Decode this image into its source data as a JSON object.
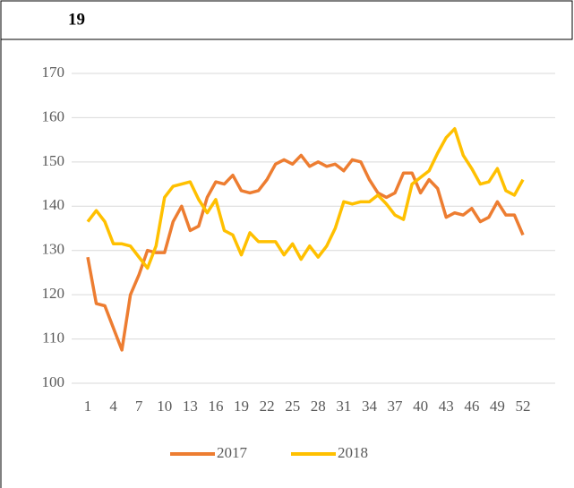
{
  "header": {
    "title": "19"
  },
  "chart_data": {
    "type": "line",
    "x": [
      1,
      2,
      3,
      4,
      5,
      6,
      7,
      8,
      9,
      10,
      11,
      12,
      13,
      14,
      15,
      16,
      17,
      18,
      19,
      20,
      21,
      22,
      23,
      24,
      25,
      26,
      27,
      28,
      29,
      30,
      31,
      32,
      33,
      34,
      35,
      36,
      37,
      38,
      39,
      40,
      41,
      42,
      43,
      44,
      45,
      46,
      47,
      48,
      49,
      50,
      51,
      52
    ],
    "xlim": [
      1,
      52
    ],
    "xticks": [
      1,
      4,
      7,
      10,
      13,
      16,
      19,
      22,
      25,
      28,
      31,
      34,
      37,
      40,
      43,
      46,
      49,
      52
    ],
    "ylim": [
      100,
      170
    ],
    "yticks": [
      100,
      110,
      120,
      130,
      140,
      150,
      160,
      170
    ],
    "grid": true,
    "legend": "bottom",
    "series": [
      {
        "name": "2017",
        "color": "#ED7D31",
        "values": [
          128.5,
          118,
          117.5,
          112.5,
          107.5,
          120,
          124.5,
          130,
          129.5,
          129.5,
          136.5,
          140,
          134.5,
          135.5,
          142,
          145.5,
          145,
          147,
          143.5,
          143,
          143.5,
          146,
          149.5,
          150.5,
          149.5,
          151.5,
          149,
          150,
          149,
          149.5,
          148,
          150.5,
          150,
          146,
          143,
          142,
          143,
          147.5,
          147.5,
          143,
          146,
          144,
          137.5,
          138.5,
          138,
          139.5,
          136.5,
          137.5,
          141,
          138,
          138,
          133.5
        ]
      },
      {
        "name": "2018",
        "color": "#FFC000",
        "values": [
          136.5,
          139,
          136.5,
          131.5,
          131.5,
          131,
          128.5,
          126,
          131,
          142,
          144.5,
          145,
          145.5,
          141.5,
          138.5,
          141.5,
          134.5,
          133.5,
          129,
          134,
          132,
          132,
          132,
          129,
          131.5,
          128,
          131,
          128.5,
          131,
          135,
          141,
          140.5,
          141,
          141,
          142.5,
          140.5,
          138,
          137,
          145,
          146.5,
          148,
          152,
          155.5,
          157.5,
          151.5,
          148.5,
          145,
          145.5,
          148.5,
          143.5,
          142.5,
          146
        ]
      }
    ]
  }
}
